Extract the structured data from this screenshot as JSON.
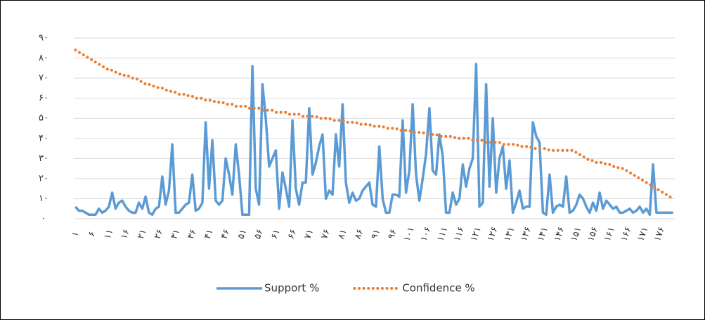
{
  "chart_data": {
    "type": "line",
    "categories": [
      "۱",
      null,
      null,
      null,
      null,
      "۶",
      null,
      null,
      null,
      null,
      "۱۱",
      null,
      null,
      null,
      null,
      "۱۶",
      null,
      null,
      null,
      null,
      "۲۱",
      null,
      null,
      null,
      null,
      "۲۶",
      null,
      null,
      null,
      null,
      "۳۱",
      null,
      null,
      null,
      null,
      "۳۶",
      null,
      null,
      null,
      null,
      "۴۱",
      null,
      null,
      null,
      null,
      "۴۶",
      null,
      null,
      null,
      null,
      "۵۱",
      null,
      null,
      null,
      null,
      "۵۶",
      null,
      null,
      null,
      null,
      "۶۱",
      null,
      null,
      null,
      null,
      "۶۶",
      null,
      null,
      null,
      null,
      "۷۱",
      null,
      null,
      null,
      null,
      "۷۶",
      null,
      null,
      null,
      null,
      "۸۱",
      null,
      null,
      null,
      null,
      "۸۶",
      null,
      null,
      null,
      null,
      "۹۱",
      null,
      null,
      null,
      null,
      "۹۶",
      null,
      null,
      null,
      null,
      "۱۰۱",
      null,
      null,
      null,
      null,
      "۱۰۶",
      null,
      null,
      null,
      null,
      "۱۱۱",
      null,
      null,
      null,
      null,
      "۱۱۶",
      null,
      null,
      null,
      null,
      "۱۲۱",
      null,
      null,
      null,
      null,
      "۱۲۶",
      null,
      null,
      null,
      null,
      "۱۳۱",
      null,
      null,
      null,
      null,
      "۱۳۶",
      null,
      null,
      null,
      null,
      "۱۴۱",
      null,
      null,
      null,
      null,
      "۱۴۶",
      null,
      null,
      null,
      null,
      "۱۵۱",
      null,
      null,
      null,
      null,
      "۱۵۶",
      null,
      null,
      null,
      null,
      "۱۶۱",
      null,
      null,
      null,
      null,
      "۱۶۶",
      null,
      null,
      null,
      null,
      "۱۷۱",
      null,
      null,
      null,
      null,
      "۱۷۶",
      null,
      null,
      null,
      null
    ],
    "series": [
      {
        "name": "Support %",
        "color": "#5b9bd5",
        "style": "solid",
        "values": [
          6,
          4,
          4,
          3,
          2,
          2,
          2,
          5,
          3,
          4,
          6,
          13,
          5,
          8,
          9,
          6,
          4,
          3,
          3,
          8,
          5,
          11,
          3,
          2,
          5,
          6,
          21,
          7,
          14,
          37,
          3,
          3,
          5,
          7,
          8,
          22,
          4,
          5,
          8,
          48,
          15,
          39,
          9,
          7,
          9,
          30,
          22,
          12,
          37,
          22,
          2,
          2,
          2,
          76,
          15,
          7,
          67,
          50,
          26,
          30,
          34,
          5,
          23,
          15,
          6,
          49,
          15,
          7,
          18,
          18,
          55,
          22,
          28,
          36,
          42,
          10,
          14,
          12,
          42,
          26,
          57,
          18,
          8,
          13,
          9,
          10,
          14,
          16,
          18,
          7,
          6,
          36,
          10,
          3,
          3,
          12,
          12,
          11,
          49,
          13,
          24,
          57,
          22,
          9,
          20,
          32,
          55,
          24,
          22,
          42,
          31,
          3,
          3,
          13,
          7,
          10,
          27,
          16,
          25,
          30,
          77,
          6,
          8,
          67,
          16,
          50,
          13,
          30,
          36,
          15,
          29,
          3,
          8,
          14,
          5,
          6,
          6,
          48,
          41,
          38,
          3,
          2,
          22,
          3,
          6,
          7,
          6,
          21,
          3,
          4,
          7,
          12,
          10,
          6,
          3,
          8,
          4,
          13,
          5,
          9,
          7,
          5,
          6,
          3,
          3,
          4,
          5,
          3,
          4,
          6,
          3,
          5,
          2,
          27,
          3,
          3,
          3,
          3,
          3,
          3
        ]
      },
      {
        "name": "Confidence %",
        "color": "#ed7d31",
        "style": "dotted",
        "values": [
          84,
          83,
          82,
          81,
          80,
          79,
          78,
          77,
          76,
          75,
          74,
          74,
          73,
          72,
          72,
          71,
          71,
          70,
          70,
          69,
          68,
          67,
          67,
          66,
          66,
          65,
          65,
          64,
          64,
          63,
          63,
          62,
          62,
          62,
          61,
          61,
          60,
          60,
          60,
          59,
          59,
          59,
          58,
          58,
          58,
          57,
          57,
          57,
          56,
          56,
          56,
          56,
          55,
          55,
          55,
          55,
          54,
          54,
          54,
          54,
          53,
          53,
          53,
          53,
          52,
          52,
          52,
          52,
          51,
          51,
          51,
          51,
          51,
          50,
          50,
          50,
          50,
          49,
          49,
          49,
          49,
          48,
          48,
          48,
          48,
          47,
          47,
          47,
          47,
          46,
          46,
          46,
          46,
          45,
          45,
          45,
          45,
          44,
          44,
          44,
          44,
          43,
          43,
          43,
          43,
          42,
          42,
          42,
          42,
          41,
          41,
          41,
          41,
          41,
          40,
          40,
          40,
          40,
          40,
          39,
          39,
          39,
          39,
          38,
          38,
          38,
          38,
          38,
          37,
          37,
          37,
          37,
          37,
          36,
          36,
          36,
          36,
          35,
          35,
          35,
          35,
          35,
          34,
          34,
          34,
          34,
          34,
          34,
          34,
          34,
          33,
          32,
          31,
          30,
          29,
          29,
          28,
          28,
          28,
          27,
          27,
          26,
          26,
          25,
          25,
          24,
          23,
          22,
          21,
          20,
          19,
          18,
          17,
          16,
          15,
          14,
          13,
          12,
          11,
          10
        ]
      }
    ],
    "ylim": [
      0,
      90
    ],
    "yticks": [
      {
        "value": 0,
        "label": "۰"
      },
      {
        "value": 10,
        "label": "۱۰"
      },
      {
        "value": 20,
        "label": "۲۰"
      },
      {
        "value": 30,
        "label": "۳۰"
      },
      {
        "value": 40,
        "label": "۴۰"
      },
      {
        "value": 50,
        "label": "۵۰"
      },
      {
        "value": 60,
        "label": "۶۰"
      },
      {
        "value": 70,
        "label": "۷۰"
      },
      {
        "value": 80,
        "label": "۸۰"
      },
      {
        "value": 90,
        "label": "۹۰"
      }
    ],
    "grid": true,
    "legend": "bottom"
  }
}
